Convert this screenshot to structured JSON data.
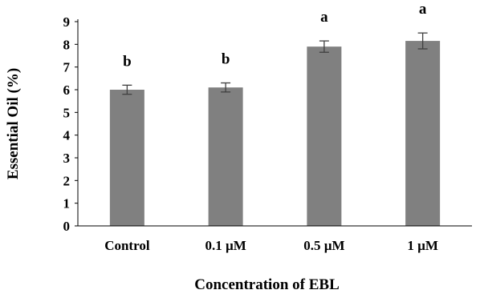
{
  "chart_data": {
    "type": "bar",
    "title": "",
    "xlabel": "Concentration of EBL",
    "ylabel": "Essential Oil (%)",
    "categories": [
      "Control",
      "0.1 µM",
      "0.5 µM",
      "1 µM"
    ],
    "values": [
      6.0,
      6.1,
      7.9,
      8.15
    ],
    "errors": [
      0.2,
      0.2,
      0.25,
      0.35
    ],
    "significance_letters": [
      "b",
      "b",
      "a",
      "a"
    ],
    "ylim": [
      0,
      9
    ],
    "yticks": [
      "0",
      "1",
      "2",
      "3",
      "4",
      "5",
      "6",
      "7",
      "8",
      "9"
    ],
    "grid": false,
    "legend": "none",
    "bar_color": "#808080",
    "error_bar_color": "#404040",
    "axis_color": "#000000"
  }
}
